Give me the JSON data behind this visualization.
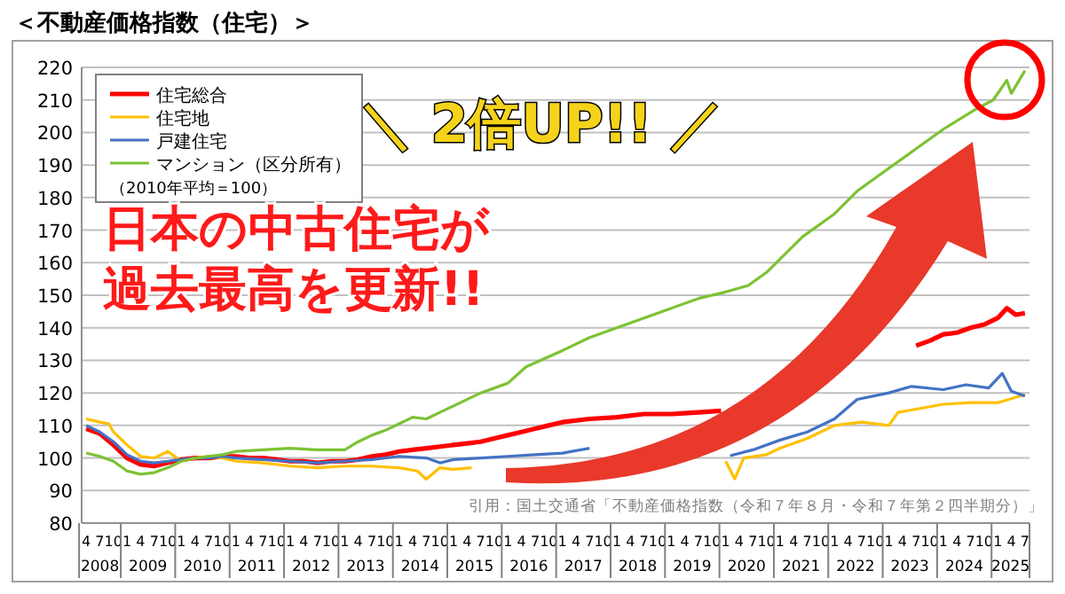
{
  "chart_data": {
    "type": "line",
    "title": "＜不動産価格指数（住宅）＞",
    "subtitle": "（2010年平均＝100）",
    "annotations": [
      "＼ 2倍UP!! ／",
      "日本の中古住宅が",
      "過去最高を更新!!",
      "引用：国土交通省「不動産価格指数（令和７年８月・令和７年第２四半期分）」",
      "2008",
      "2009",
      "2010",
      "2011",
      "2012",
      "2013",
      "2014",
      "2015",
      "2016",
      "2017",
      "2018",
      "2019",
      "2020",
      "2021",
      "2022",
      "2023",
      "2024",
      "2025"
    ],
    "xlim": [
      "2008-03",
      "2025-08"
    ],
    "ylim": [
      80,
      220
    ],
    "yticks": [
      80,
      90,
      100,
      110,
      120,
      130,
      140,
      150,
      160,
      170,
      180,
      190,
      200,
      210,
      220
    ],
    "xticks": [
      {
        "value": "2008-04",
        "label": "4"
      },
      {
        "value": "2008-07",
        "label": "7"
      },
      {
        "value": "2008-10",
        "label": "10"
      },
      {
        "value": "2009-01",
        "label": "1"
      },
      {
        "value": "2009-04",
        "label": "4"
      },
      {
        "value": "2009-07",
        "label": "7"
      },
      {
        "value": "2009-10",
        "label": "10"
      },
      {
        "value": "2010-01",
        "label": "1"
      },
      {
        "value": "2010-04",
        "label": "4"
      },
      {
        "value": "2010-07",
        "label": "7"
      },
      {
        "value": "2010-10",
        "label": "10"
      },
      {
        "value": "2011-01",
        "label": "1"
      },
      {
        "value": "2011-04",
        "label": "4"
      },
      {
        "value": "2011-07",
        "label": "7"
      },
      {
        "value": "2011-10",
        "label": "10"
      },
      {
        "value": "2012-01",
        "label": "1"
      },
      {
        "value": "2012-04",
        "label": "4"
      },
      {
        "value": "2012-07",
        "label": "7"
      },
      {
        "value": "2012-10",
        "label": "10"
      },
      {
        "value": "2013-01",
        "label": "1"
      },
      {
        "value": "2013-04",
        "label": "4"
      },
      {
        "value": "2013-07",
        "label": "7"
      },
      {
        "value": "2013-10",
        "label": "10"
      },
      {
        "value": "2014-01",
        "label": "1"
      },
      {
        "value": "2014-04",
        "label": "4"
      },
      {
        "value": "2014-07",
        "label": "7"
      },
      {
        "value": "2014-10",
        "label": "10"
      },
      {
        "value": "2015-01",
        "label": "1"
      },
      {
        "value": "2015-04",
        "label": "4"
      },
      {
        "value": "2015-07",
        "label": "7"
      },
      {
        "value": "2015-10",
        "label": "10"
      },
      {
        "value": "2016-01",
        "label": "1"
      },
      {
        "value": "2016-04",
        "label": "4"
      },
      {
        "value": "2016-07",
        "label": "7"
      },
      {
        "value": "2016-10",
        "label": "10"
      },
      {
        "value": "2017-01",
        "label": "1"
      },
      {
        "value": "2017-04",
        "label": "4"
      },
      {
        "value": "2017-07",
        "label": "7"
      },
      {
        "value": "2017-10",
        "label": "10"
      },
      {
        "value": "2018-01",
        "label": "1"
      },
      {
        "value": "2018-04",
        "label": "4"
      },
      {
        "value": "2018-07",
        "label": "7"
      },
      {
        "value": "2018-10",
        "label": "10"
      },
      {
        "value": "2019-01",
        "label": "1"
      },
      {
        "value": "2019-04",
        "label": "4"
      },
      {
        "value": "2019-07",
        "label": "7"
      },
      {
        "value": "2019-10",
        "label": "10"
      },
      {
        "value": "2020-01",
        "label": "1"
      },
      {
        "value": "2020-04",
        "label": "4"
      },
      {
        "value": "2020-07",
        "label": "7"
      },
      {
        "value": "2020-10",
        "label": "10"
      },
      {
        "value": "2021-01",
        "label": "1"
      },
      {
        "value": "2021-04",
        "label": "4"
      },
      {
        "value": "2021-07",
        "label": "7"
      },
      {
        "value": "2021-10",
        "label": "10"
      },
      {
        "value": "2022-01",
        "label": "1"
      },
      {
        "value": "2022-04",
        "label": "4"
      },
      {
        "value": "2022-07",
        "label": "7"
      },
      {
        "value": "2022-10",
        "label": "10"
      },
      {
        "value": "2023-01",
        "label": "1"
      },
      {
        "value": "2023-04",
        "label": "4"
      },
      {
        "value": "2023-07",
        "label": "7"
      },
      {
        "value": "2023-10",
        "label": "10"
      },
      {
        "value": "2024-01",
        "label": "1"
      },
      {
        "value": "2024-04",
        "label": "4"
      },
      {
        "value": "2024-07",
        "label": "7"
      },
      {
        "value": "2024-10",
        "label": "10"
      },
      {
        "value": "2025-01",
        "label": "1"
      },
      {
        "value": "2025-04",
        "label": "4"
      },
      {
        "value": "2025-07",
        "label": "7"
      }
    ],
    "grid": "y",
    "legend": "top left",
    "marker": "none",
    "series": [
      {
        "name": "住宅総合",
        "color": "#ff0000",
        "x": [
          "2008-04",
          "2008-07",
          "2008-10",
          "2009-01",
          "2009-04",
          "2009-07",
          "2009-10",
          "2010-01",
          "2010-04",
          "2010-07",
          "2010-10",
          "2011-01",
          "2011-04",
          "2011-07",
          "2011-10",
          "2012-01",
          "2012-04",
          "2012-07",
          "2012-10",
          "2013-01",
          "2013-04",
          "2013-07",
          "2013-10",
          "2014-01",
          "2014-04",
          "2014-07",
          "2014-10",
          "2015-01",
          "2015-04",
          "2015-07",
          "2015-10",
          "2016-01",
          "2016-04",
          "2016-07",
          "2016-10",
          "2017-01",
          "2017-07",
          "2018-01",
          "2018-07",
          "2019-01",
          "2019-07",
          "2019-12",
          "2023-07",
          "2023-10",
          "2024-01",
          "2024-04",
          "2024-07",
          "2024-10",
          "2025-01",
          "2025-03",
          "2025-05",
          "2025-07"
        ],
        "values": [
          109,
          107.5,
          104,
          100,
          98,
          97.5,
          98.5,
          99.5,
          100,
          100,
          100.5,
          100.5,
          100,
          100,
          99.5,
          99,
          99,
          98.5,
          99,
          99,
          99.5,
          100.5,
          101,
          102,
          102.5,
          103,
          103.5,
          104,
          104.5,
          105,
          106,
          107,
          108,
          109,
          110,
          111,
          112,
          112.5,
          113.5,
          113.5,
          114,
          114.5,
          134.5,
          136,
          138,
          138.5,
          140,
          141,
          143,
          146,
          144,
          144.5
        ]
      },
      {
        "name": "住宅地",
        "color": "#ffc000",
        "x": [
          "2008-04",
          "2008-07",
          "2008-09",
          "2008-10",
          "2009-01",
          "2009-04",
          "2009-07",
          "2009-10",
          "2010-01",
          "2010-04",
          "2010-07",
          "2010-10",
          "2011-01",
          "2011-07",
          "2012-01",
          "2012-07",
          "2013-01",
          "2013-07",
          "2014-01",
          "2014-05",
          "2014-07",
          "2014-10",
          "2015-01",
          "2015-05",
          "2020-01",
          "2020-03",
          "2020-05",
          "2020-10",
          "2021-01",
          "2021-07",
          "2022-01",
          "2022-07",
          "2023-01",
          "2023-03",
          "2023-07",
          "2024-01",
          "2024-07",
          "2025-01",
          "2025-07"
        ],
        "values": [
          112,
          111,
          110.5,
          108,
          104,
          100.5,
          100,
          102,
          99,
          100,
          100.5,
          100,
          99,
          98.5,
          97.5,
          97,
          97.5,
          97.5,
          97,
          96,
          93.5,
          97,
          96.5,
          97,
          99,
          93.6,
          100,
          101,
          103,
          106,
          110,
          111,
          110,
          114,
          115,
          116.5,
          117,
          117,
          119.5
        ]
      },
      {
        "name": "戸建住宅",
        "color": "#4472c4",
        "x": [
          "2008-04",
          "2008-07",
          "2008-10",
          "2009-01",
          "2009-04",
          "2009-07",
          "2009-10",
          "2010-01",
          "2010-04",
          "2010-07",
          "2010-10",
          "2011-01",
          "2011-07",
          "2012-01",
          "2012-07",
          "2013-01",
          "2013-07",
          "2014-01",
          "2014-07",
          "2014-10",
          "2015-01",
          "2015-07",
          "2016-01",
          "2016-07",
          "2017-01",
          "2017-07",
          "2020-02",
          "2020-07",
          "2021-01",
          "2021-07",
          "2022-01",
          "2022-06",
          "2023-01",
          "2023-06",
          "2024-01",
          "2024-06",
          "2024-11",
          "2025-02",
          "2025-04",
          "2025-07"
        ],
        "values": [
          110,
          108,
          105,
          101,
          99,
          98.5,
          99,
          99.5,
          100,
          100,
          100.5,
          100,
          99.5,
          99,
          98.5,
          99,
          99.5,
          100.5,
          100,
          98.5,
          99.5,
          100,
          100.5,
          101,
          101.5,
          103,
          100.7,
          102.5,
          105.5,
          108,
          112,
          118,
          120,
          122,
          121,
          122.5,
          121.5,
          126,
          120.5,
          119
        ]
      },
      {
        "name": "マンション（区分所有）",
        "color": "#7cc233",
        "x": [
          "2008-04",
          "2008-07",
          "2008-10",
          "2009-01",
          "2009-04",
          "2009-07",
          "2009-10",
          "2010-01",
          "2010-04",
          "2010-07",
          "2010-10",
          "2011-01",
          "2011-07",
          "2012-01",
          "2012-07",
          "2013-01",
          "2013-04",
          "2013-07",
          "2013-10",
          "2014-01",
          "2014-04",
          "2014-07",
          "2014-10",
          "2015-01",
          "2015-07",
          "2016-01",
          "2016-05",
          "2017-01",
          "2017-07",
          "2018-01",
          "2018-07",
          "2019-01",
          "2019-07",
          "2020-01",
          "2020-06",
          "2020-10",
          "2021-06",
          "2022-01",
          "2022-06",
          "2023-01",
          "2023-07",
          "2024-01",
          "2024-08",
          "2024-12",
          "2025-03",
          "2025-04",
          "2025-07"
        ],
        "values": [
          101.5,
          100.5,
          99,
          96,
          95,
          95.5,
          97,
          99,
          100,
          100.5,
          101,
          102,
          102.5,
          103,
          102.5,
          102.5,
          105,
          107,
          108.5,
          110.5,
          112.5,
          112,
          114,
          116,
          120,
          123,
          128,
          133,
          137,
          140,
          143,
          146,
          149,
          151,
          153,
          157,
          168,
          175,
          182,
          189,
          195,
          201,
          207,
          210,
          216,
          212,
          219
        ]
      }
    ]
  }
}
